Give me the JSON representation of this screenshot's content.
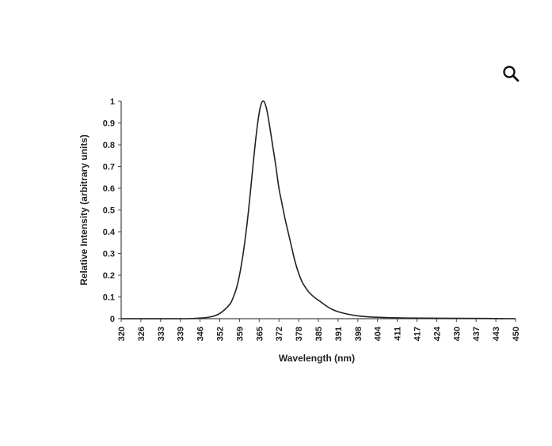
{
  "toolbar": {
    "zoom_icon": "magnifier-icon"
  },
  "chart_data": {
    "type": "line",
    "title": "",
    "xlabel": "Wavelength (nm)",
    "ylabel": "Relative Intensity (arbitrary units)",
    "ylim": [
      0,
      1
    ],
    "xlim": [
      320,
      450
    ],
    "x_ticks": [
      "320",
      "326",
      "333",
      "339",
      "346",
      "352",
      "359",
      "365",
      "372",
      "378",
      "385",
      "391",
      "398",
      "404",
      "411",
      "417",
      "424",
      "430",
      "437",
      "443",
      "450"
    ],
    "y_ticks": [
      "0",
      "0.1",
      "0.2",
      "0.3",
      "0.4",
      "0.5",
      "0.6",
      "0.7",
      "0.8",
      "0.9",
      "1"
    ],
    "grid": false,
    "legend": "none",
    "colors": {
      "line": "#222222",
      "axis": "#444444"
    },
    "series": [
      {
        "x": [
          320,
          340,
          345,
          348,
          350,
          352,
          354,
          356,
          357,
          358,
          359,
          360,
          361,
          362,
          363,
          364,
          365,
          366,
          367,
          368,
          369,
          370,
          371,
          372,
          373,
          374,
          375,
          376,
          377,
          378,
          379,
          380,
          382,
          384,
          386,
          388,
          390,
          392,
          395,
          398,
          402,
          408,
          415,
          425,
          440,
          450
        ],
        "y": [
          0.0,
          0.0,
          0.002,
          0.005,
          0.01,
          0.02,
          0.04,
          0.07,
          0.1,
          0.14,
          0.2,
          0.28,
          0.38,
          0.5,
          0.64,
          0.78,
          0.9,
          0.98,
          1.0,
          0.96,
          0.88,
          0.79,
          0.7,
          0.6,
          0.53,
          0.46,
          0.4,
          0.34,
          0.28,
          0.23,
          0.19,
          0.16,
          0.12,
          0.095,
          0.075,
          0.055,
          0.04,
          0.03,
          0.02,
          0.013,
          0.008,
          0.005,
          0.003,
          0.002,
          0.001,
          0.0
        ]
      }
    ]
  }
}
